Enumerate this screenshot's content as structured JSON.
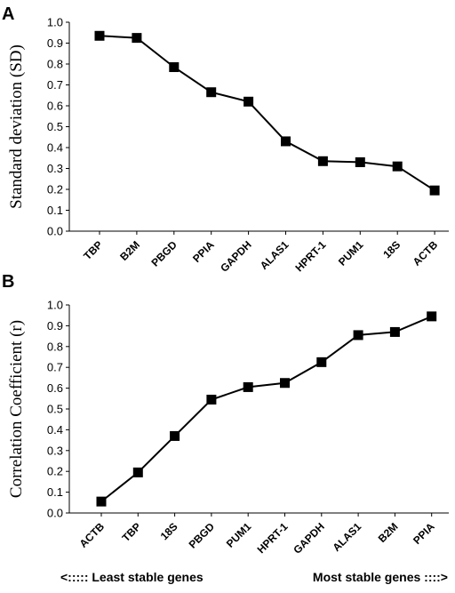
{
  "chart_data": [
    {
      "type": "line",
      "panel_label": "A",
      "ylabel": "Standard deviation (SD)",
      "xlabel": "",
      "ylim": [
        0.0,
        1.0
      ],
      "yticks": [
        "0.0",
        "0.1",
        "0.2",
        "0.3",
        "0.4",
        "0.5",
        "0.6",
        "0.7",
        "0.8",
        "0.9",
        "1.0"
      ],
      "categories": [
        "TBP",
        "B2M",
        "PBGD",
        "PPIA",
        "GAPDH",
        "ALAS1",
        "HPRT-1",
        "PUM1",
        "18S",
        "ACTB"
      ],
      "values": [
        0.935,
        0.925,
        0.785,
        0.665,
        0.62,
        0.43,
        0.335,
        0.33,
        0.31,
        0.195
      ],
      "color": "#000000",
      "marker": "square",
      "grid": false
    },
    {
      "type": "line",
      "panel_label": "B",
      "ylabel": "Correlation Coefficient (r)",
      "xlabel": "",
      "ylim": [
        0.0,
        1.0
      ],
      "yticks": [
        "0.0",
        "0.1",
        "0.2",
        "0.3",
        "0.4",
        "0.5",
        "0.6",
        "0.7",
        "0.8",
        "0.9",
        "1.0"
      ],
      "categories": [
        "ACTB",
        "TBP",
        "18S",
        "PBGD",
        "PUM1",
        "HPRT-1",
        "GAPDH",
        "ALAS1",
        "B2M",
        "PPIA"
      ],
      "values": [
        0.055,
        0.195,
        0.37,
        0.545,
        0.605,
        0.625,
        0.725,
        0.855,
        0.87,
        0.945
      ],
      "color": "#000000",
      "marker": "square",
      "grid": false
    }
  ],
  "footer": {
    "left": "<::::: Least stable genes",
    "right": "Most stable genes ::::>"
  }
}
